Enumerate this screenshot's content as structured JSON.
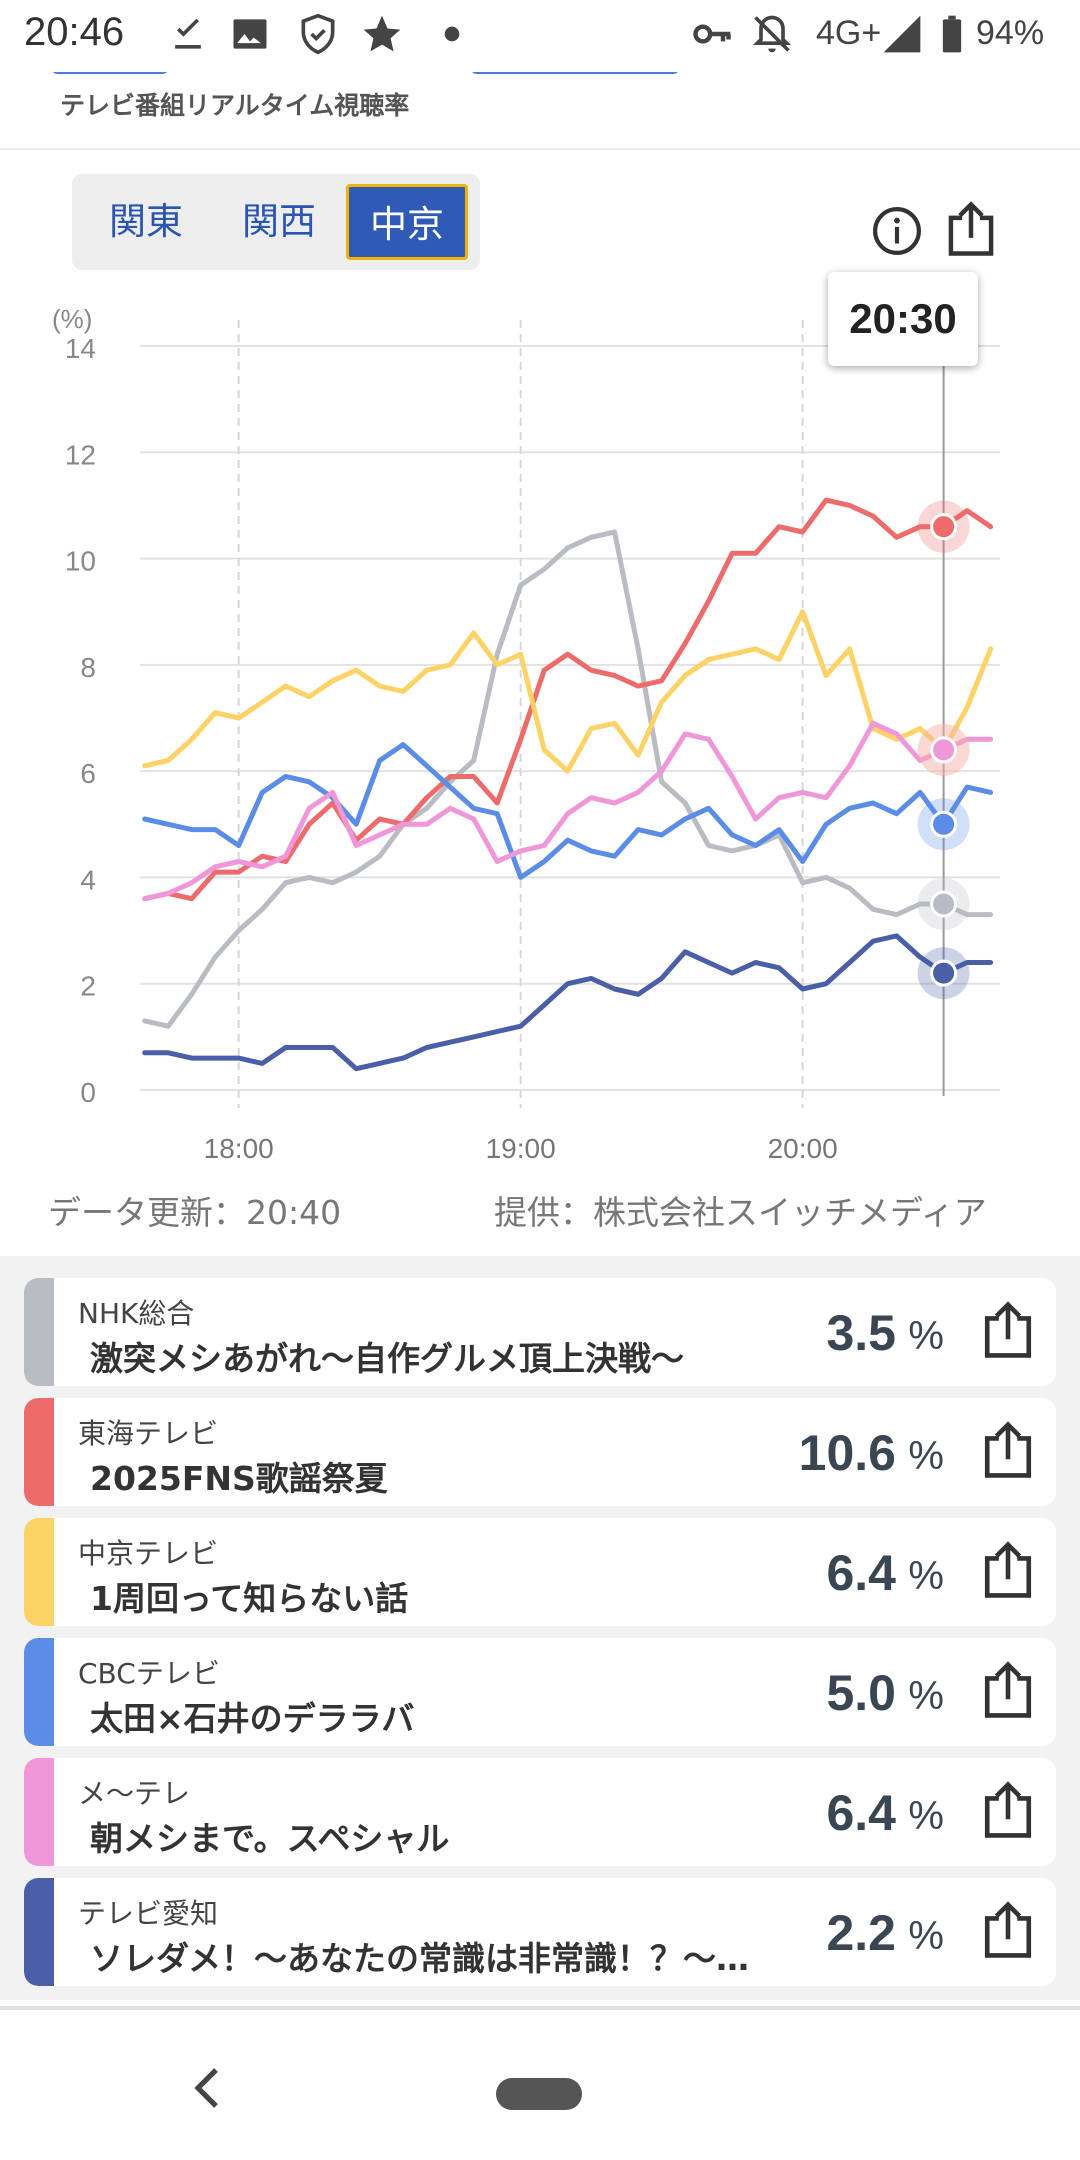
{
  "status_bar": {
    "time": "20:46",
    "network": "4G+",
    "battery": "94%",
    "left_icons": [
      "download-done-icon",
      "image-icon",
      "shield-icon",
      "star-icon",
      "dot-icon"
    ],
    "right_icons": [
      "vpn-key-icon",
      "bell-off-icon",
      "signal-icon",
      "battery-icon"
    ]
  },
  "header": {
    "subtitle": "テレビ番組リアルタイム視聴率"
  },
  "region_tabs": [
    {
      "label": "関東",
      "active": false
    },
    {
      "label": "関西",
      "active": false
    },
    {
      "label": "中京",
      "active": true
    }
  ],
  "chart_tooltip": "20:30",
  "credits": {
    "updated": "データ更新：20:40",
    "provider": "提供：株式会社スイッチメディア"
  },
  "chart_data": {
    "type": "line",
    "unit_label": "(%)",
    "ylim": [
      0,
      14
    ],
    "yticks": [
      "0",
      "2",
      "4",
      "6",
      "8",
      "10",
      "12",
      "14"
    ],
    "xlim": [
      "17:39",
      "20:42"
    ],
    "xticks": [
      "18:00",
      "19:00",
      "20:00"
    ],
    "cursor_x": "20:30",
    "grid": true,
    "series": [
      {
        "name": "NHK総合",
        "color": "#b9bcc3",
        "x": [
          "17:40",
          "17:45",
          "17:50",
          "17:55",
          "18:00",
          "18:05",
          "18:10",
          "18:15",
          "18:20",
          "18:25",
          "18:30",
          "18:35",
          "18:40",
          "18:45",
          "18:50",
          "18:55",
          "19:00",
          "19:05",
          "19:10",
          "19:15",
          "19:20",
          "19:25",
          "19:30",
          "19:35",
          "19:40",
          "19:45",
          "19:50",
          "19:55",
          "20:00",
          "20:05",
          "20:10",
          "20:15",
          "20:20",
          "20:25",
          "20:30",
          "20:35",
          "20:40"
        ],
        "y": [
          1.3,
          1.2,
          1.8,
          2.5,
          3.0,
          3.4,
          3.9,
          4.0,
          3.9,
          4.1,
          4.4,
          5.0,
          5.3,
          5.8,
          6.2,
          8.2,
          9.5,
          9.8,
          10.2,
          10.4,
          10.5,
          8.3,
          5.8,
          5.4,
          4.6,
          4.5,
          4.6,
          4.8,
          3.9,
          4.0,
          3.8,
          3.4,
          3.3,
          3.5,
          3.5,
          3.3,
          3.3
        ]
      },
      {
        "name": "東海テレビ",
        "color": "#ee6b6b",
        "x": [
          "17:40",
          "17:45",
          "17:50",
          "17:55",
          "18:00",
          "18:05",
          "18:10",
          "18:15",
          "18:20",
          "18:25",
          "18:30",
          "18:35",
          "18:40",
          "18:45",
          "18:50",
          "18:55",
          "19:00",
          "19:05",
          "19:10",
          "19:15",
          "19:20",
          "19:25",
          "19:30",
          "19:35",
          "19:40",
          "19:45",
          "19:50",
          "19:55",
          "20:00",
          "20:05",
          "20:10",
          "20:15",
          "20:20",
          "20:25",
          "20:30",
          "20:35",
          "20:40"
        ],
        "y": [
          3.6,
          3.7,
          3.6,
          4.1,
          4.1,
          4.4,
          4.3,
          5.0,
          5.4,
          4.7,
          5.1,
          5.0,
          5.5,
          5.9,
          5.9,
          5.4,
          6.6,
          7.9,
          8.2,
          7.9,
          7.8,
          7.6,
          7.7,
          8.4,
          9.2,
          10.1,
          10.1,
          10.6,
          10.5,
          11.1,
          11.0,
          10.8,
          10.4,
          10.6,
          10.6,
          10.9,
          10.6
        ]
      },
      {
        "name": "中京テレビ",
        "color": "#fdd367",
        "x": [
          "17:40",
          "17:45",
          "17:50",
          "17:55",
          "18:00",
          "18:05",
          "18:10",
          "18:15",
          "18:20",
          "18:25",
          "18:30",
          "18:35",
          "18:40",
          "18:45",
          "18:50",
          "18:55",
          "19:00",
          "19:05",
          "19:10",
          "19:15",
          "19:20",
          "19:25",
          "19:30",
          "19:35",
          "19:40",
          "19:45",
          "19:50",
          "19:55",
          "20:00",
          "20:05",
          "20:10",
          "20:15",
          "20:20",
          "20:25",
          "20:30",
          "20:35",
          "20:40"
        ],
        "y": [
          6.1,
          6.2,
          6.6,
          7.1,
          7.0,
          7.3,
          7.6,
          7.4,
          7.7,
          7.9,
          7.6,
          7.5,
          7.9,
          8.0,
          8.6,
          8.0,
          8.2,
          6.4,
          6.0,
          6.8,
          6.9,
          6.3,
          7.3,
          7.8,
          8.1,
          8.2,
          8.3,
          8.1,
          9.0,
          7.8,
          8.3,
          6.8,
          6.6,
          6.8,
          6.4,
          7.2,
          8.3
        ]
      },
      {
        "name": "CBCテレビ",
        "color": "#5b8de8",
        "x": [
          "17:40",
          "17:45",
          "17:50",
          "17:55",
          "18:00",
          "18:05",
          "18:10",
          "18:15",
          "18:20",
          "18:25",
          "18:30",
          "18:35",
          "18:40",
          "18:45",
          "18:50",
          "18:55",
          "19:00",
          "19:05",
          "19:10",
          "19:15",
          "19:20",
          "19:25",
          "19:30",
          "19:35",
          "19:40",
          "19:45",
          "19:50",
          "19:55",
          "20:00",
          "20:05",
          "20:10",
          "20:15",
          "20:20",
          "20:25",
          "20:30",
          "20:35",
          "20:40"
        ],
        "y": [
          5.1,
          5.0,
          4.9,
          4.9,
          4.6,
          5.6,
          5.9,
          5.8,
          5.5,
          5.0,
          6.2,
          6.5,
          6.1,
          5.7,
          5.3,
          5.2,
          4.0,
          4.3,
          4.7,
          4.5,
          4.4,
          4.9,
          4.8,
          5.1,
          5.3,
          4.8,
          4.6,
          4.9,
          4.3,
          5.0,
          5.3,
          5.4,
          5.2,
          5.6,
          5.0,
          5.7,
          5.6
        ]
      },
      {
        "name": "メ～テレ",
        "color": "#ef97d9",
        "x": [
          "17:40",
          "17:45",
          "17:50",
          "17:55",
          "18:00",
          "18:05",
          "18:10",
          "18:15",
          "18:20",
          "18:25",
          "18:30",
          "18:35",
          "18:40",
          "18:45",
          "18:50",
          "18:55",
          "19:00",
          "19:05",
          "19:10",
          "19:15",
          "19:20",
          "19:25",
          "19:30",
          "19:35",
          "19:40",
          "19:45",
          "19:50",
          "19:55",
          "20:00",
          "20:05",
          "20:10",
          "20:15",
          "20:20",
          "20:25",
          "20:30",
          "20:35",
          "20:40"
        ],
        "y": [
          3.6,
          3.7,
          3.9,
          4.2,
          4.3,
          4.2,
          4.4,
          5.3,
          5.6,
          4.6,
          4.8,
          5.0,
          5.0,
          5.3,
          5.1,
          4.3,
          4.5,
          4.6,
          5.2,
          5.5,
          5.4,
          5.6,
          6.0,
          6.7,
          6.6,
          5.9,
          5.1,
          5.5,
          5.6,
          5.5,
          6.1,
          6.9,
          6.7,
          6.2,
          6.4,
          6.6,
          6.6
        ]
      },
      {
        "name": "テレビ愛知",
        "color": "#4a5fa8",
        "x": [
          "17:40",
          "17:45",
          "17:50",
          "17:55",
          "18:00",
          "18:05",
          "18:10",
          "18:15",
          "18:20",
          "18:25",
          "18:30",
          "18:35",
          "18:40",
          "18:45",
          "18:50",
          "18:55",
          "19:00",
          "19:05",
          "19:10",
          "19:15",
          "19:20",
          "19:25",
          "19:30",
          "19:35",
          "19:40",
          "19:45",
          "19:50",
          "19:55",
          "20:00",
          "20:05",
          "20:10",
          "20:15",
          "20:20",
          "20:25",
          "20:30",
          "20:35",
          "20:40"
        ],
        "y": [
          0.7,
          0.7,
          0.6,
          0.6,
          0.6,
          0.5,
          0.8,
          0.8,
          0.8,
          0.4,
          0.5,
          0.6,
          0.8,
          0.9,
          1.0,
          1.1,
          1.2,
          1.6,
          2.0,
          2.1,
          1.9,
          1.8,
          2.1,
          2.6,
          2.4,
          2.2,
          2.4,
          2.3,
          1.9,
          2.0,
          2.4,
          2.8,
          2.9,
          2.5,
          2.2,
          2.4,
          2.4
        ]
      }
    ]
  },
  "ratings": [
    {
      "channel": "NHK総合",
      "program": "激突メシあがれ～自作グルメ頂上決戦～",
      "value": "3.5",
      "unit": "%",
      "color": "#b9bcc3"
    },
    {
      "channel": "東海テレビ",
      "program": "2025FNS歌謡祭夏",
      "value": "10.6",
      "unit": "%",
      "color": "#ee6b6b"
    },
    {
      "channel": "中京テレビ",
      "program": "1周回って知らない話",
      "value": "6.4",
      "unit": "%",
      "color": "#fdd367"
    },
    {
      "channel": "CBCテレビ",
      "program": "太田×石井のデララバ",
      "value": "5.0",
      "unit": "%",
      "color": "#5b8de8"
    },
    {
      "channel": "メ～テレ",
      "program": "朝メシまで。スペシャル",
      "value": "6.4",
      "unit": "%",
      "color": "#ef97d9"
    },
    {
      "channel": "テレビ愛知",
      "program": "ソレダメ！～あなたの常識は非常識！？～…",
      "value": "2.2",
      "unit": "%",
      "color": "#4a5fa8"
    }
  ],
  "nav": {
    "icons": [
      "back-icon",
      "home-pill-icon"
    ]
  }
}
